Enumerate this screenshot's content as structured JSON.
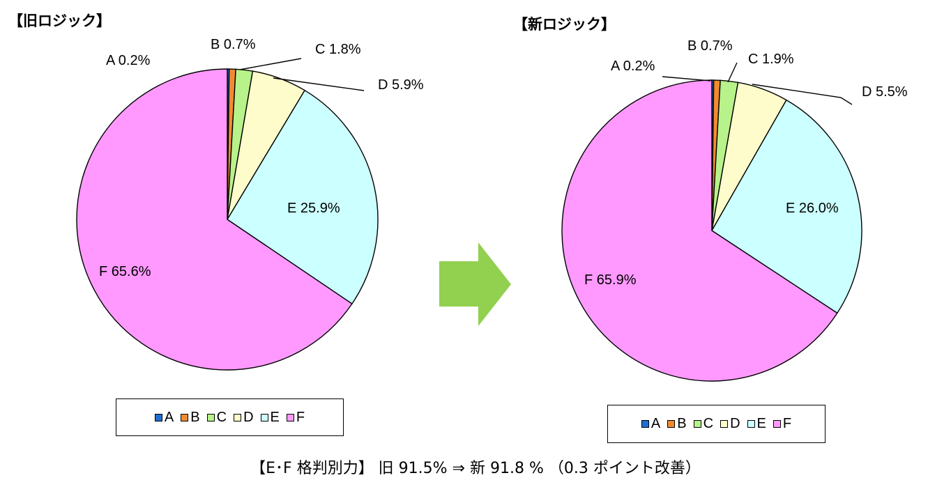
{
  "chart_data": [
    {
      "type": "pie",
      "title": "【旧ロジック】",
      "categories": [
        "A",
        "B",
        "C",
        "D",
        "E",
        "F"
      ],
      "values": [
        0.2,
        0.7,
        1.8,
        5.9,
        25.9,
        65.6
      ],
      "labels": [
        "A 0.2%",
        "B 0.7%",
        "C 1.8%",
        "D 5.9%",
        "E 25.9%",
        "F 65.6%"
      ],
      "colors": [
        "#1f6fd1",
        "#f28b30",
        "#b8f28a",
        "#fffccc",
        "#ccffff",
        "#ff99ff"
      ],
      "legend_position": "bottom"
    },
    {
      "type": "pie",
      "title": "【新ロジック】",
      "categories": [
        "A",
        "B",
        "C",
        "D",
        "E",
        "F"
      ],
      "values": [
        0.2,
        0.7,
        1.9,
        5.5,
        26.0,
        65.9
      ],
      "labels": [
        "A 0.2%",
        "B 0.7%",
        "C 1.9%",
        "D 5.5%",
        "E 26.0%",
        "F 65.9%"
      ],
      "colors": [
        "#1f6fd1",
        "#f28b30",
        "#b8f28a",
        "#fffccc",
        "#ccffff",
        "#ff99ff"
      ],
      "legend_position": "bottom"
    }
  ],
  "arrow_color": "#92d050",
  "footer": {
    "text": "【E･F 格判別力】 旧 91.5%  ⇒  新 91.8  % （0.3 ポイント改善）"
  }
}
